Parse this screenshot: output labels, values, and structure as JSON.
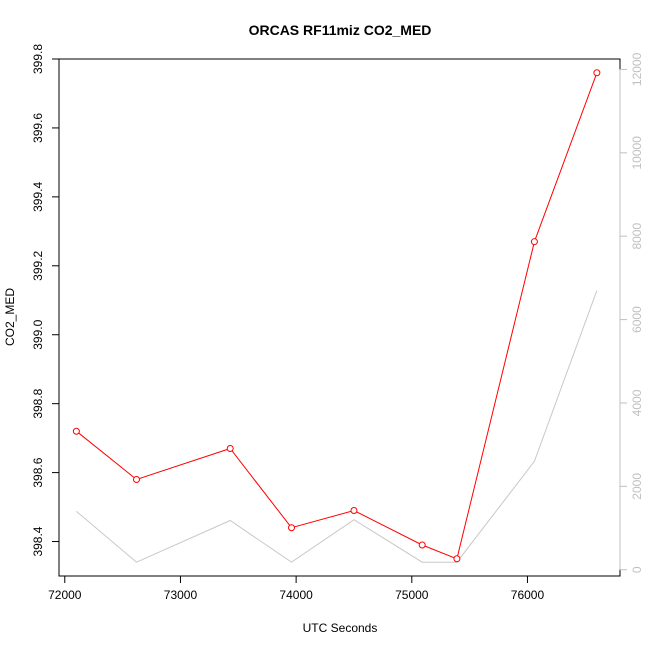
{
  "chart_data": {
    "type": "line",
    "title": "ORCAS RF11miz CO2_MED",
    "xlabel": "UTC Seconds",
    "ylabel": "CO2_MED",
    "xlim": [
      71950,
      76800
    ],
    "ylim": [
      398.3,
      399.8
    ],
    "y2lim": [
      -150,
      12250
    ],
    "x_ticks": [
      72000,
      73000,
      74000,
      75000,
      76000
    ],
    "y_ticks": [
      398.4,
      398.6,
      398.8,
      399.0,
      399.2,
      399.4,
      399.6,
      399.8
    ],
    "y2_ticks": [
      0,
      2000,
      4000,
      6000,
      8000,
      10000,
      12000
    ],
    "grid": false,
    "series": [
      {
        "color": "#ff0000",
        "axis": "left",
        "marker": "circle",
        "x": [
          72100,
          72620,
          73430,
          73960,
          74500,
          75090,
          75390,
          76060,
          76600
        ],
        "y": [
          398.72,
          398.58,
          398.67,
          398.44,
          398.49,
          398.39,
          398.35,
          399.27,
          399.76
        ]
      },
      {
        "color": "#c8c8c8",
        "axis": "right",
        "marker": "none",
        "x": [
          72100,
          72620,
          73430,
          73960,
          74500,
          75090,
          75390,
          76060,
          76600
        ],
        "y": [
          1400,
          180,
          1180,
          180,
          1200,
          180,
          180,
          2600,
          6700
        ]
      }
    ]
  }
}
